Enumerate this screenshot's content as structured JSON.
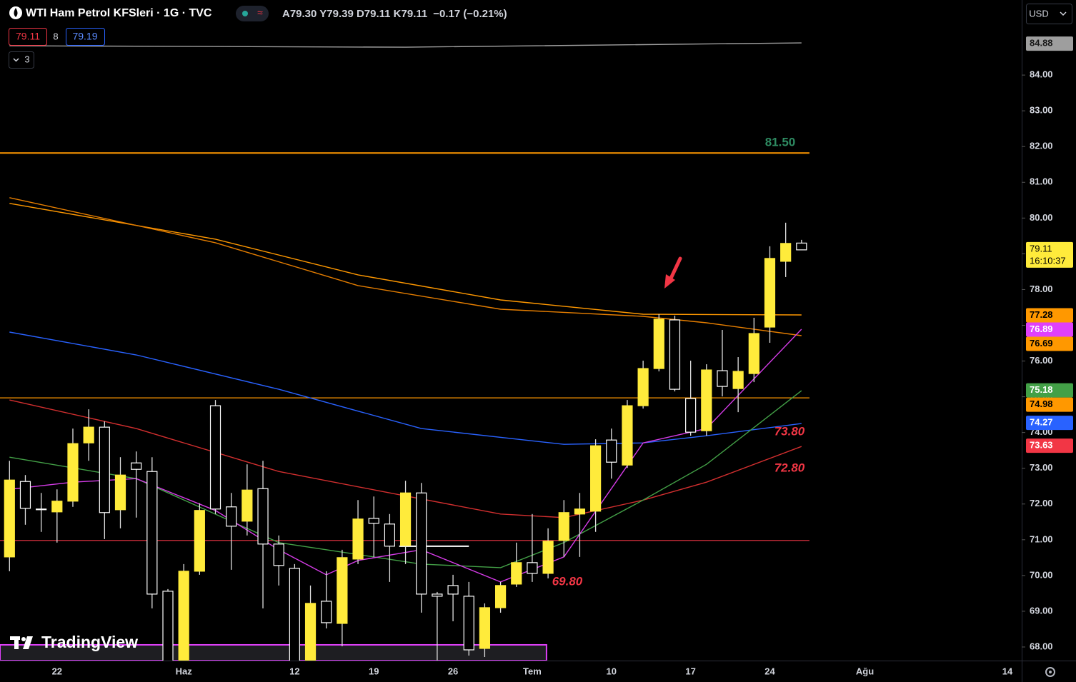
{
  "header": {
    "title": "WTI Ham Petrol KFSleri · 1G · TVC",
    "ohlc": "A79.30 Y79.39 D79.11 K79.11",
    "change": "−0.17 (−0.21%)",
    "bid": "79.11",
    "spread": "8",
    "ask": "79.19",
    "indicators": "3",
    "currency": "USD",
    "logo": "TradingView"
  },
  "chart_data": {
    "type": "candlestick",
    "open": [
      70.52,
      72.63,
      71.86,
      71.78,
      72.08,
      73.71,
      74.15,
      71.84,
      73.15,
      72.91,
      69.56,
      67.3,
      70.12,
      74.75,
      71.92,
      71.52,
      72.43,
      70.88,
      70.2,
      67.3,
      69.28,
      68.66,
      70.46,
      71.6,
      71.44,
      70.84,
      72.31,
      69.48,
      69.72,
      69.42,
      67.96,
      69.1,
      69.76,
      70.36,
      70.06,
      70.98,
      71.72,
      71.8,
      73.79,
      73.09,
      74.75,
      75.79,
      77.15,
      74.95,
      74.05,
      75.73,
      75.23,
      75.65,
      76.95,
      78.79,
      79.3
    ],
    "high": [
      73.21,
      72.81,
      72.31,
      72.41,
      74.11,
      74.65,
      74.31,
      73.31,
      73.47,
      73.31,
      69.62,
      70.32,
      72.02,
      74.91,
      72.31,
      73.11,
      73.21,
      71.12,
      70.32,
      69.72,
      70.12,
      70.72,
      72.11,
      72.21,
      71.72,
      72.65,
      72.59,
      69.54,
      70.02,
      69.82,
      69.22,
      69.82,
      70.92,
      71.72,
      71.32,
      72.11,
      72.31,
      73.81,
      74.11,
      74.91,
      76.01,
      77.31,
      77.27,
      76.01,
      75.91,
      76.87,
      76.11,
      77.21,
      79.21,
      79.87,
      79.39
    ],
    "low": [
      70.12,
      71.42,
      71.22,
      70.92,
      71.92,
      73.21,
      71.02,
      71.32,
      71.62,
      69.08,
      67.0,
      67.0,
      70.02,
      71.72,
      70.16,
      71.12,
      69.08,
      69.72,
      67.0,
      67.0,
      68.52,
      68.02,
      70.32,
      70.52,
      69.82,
      70.32,
      68.96,
      67.0,
      68.72,
      67.76,
      67.72,
      68.96,
      69.68,
      69.82,
      69.92,
      70.52,
      70.52,
      71.22,
      72.71,
      73.01,
      74.67,
      75.71,
      75.15,
      73.91,
      73.91,
      75.01,
      74.57,
      75.41,
      76.51,
      78.35,
      79.11
    ],
    "close": [
      72.67,
      71.88,
      71.84,
      72.08,
      73.69,
      74.15,
      71.76,
      72.81,
      72.97,
      69.48,
      67.3,
      70.12,
      71.82,
      71.86,
      71.38,
      72.39,
      70.88,
      70.28,
      67.3,
      69.22,
      68.68,
      70.5,
      71.58,
      71.46,
      70.82,
      72.31,
      69.48,
      69.42,
      69.48,
      67.92,
      69.1,
      69.72,
      70.36,
      70.06,
      70.96,
      71.76,
      71.86,
      73.63,
      73.17,
      74.75,
      75.79,
      77.17,
      75.21,
      74.01,
      75.75,
      75.29,
      75.71,
      76.77,
      78.87,
      79.29,
      79.11
    ],
    "up_color": "#ffeb3b",
    "down_color": "#000000",
    "down_border": "#ffffff",
    "wick_color": "#e0e0e0",
    "xlim": [
      -0.6,
      63.9
    ],
    "ylim": [
      67.62,
      86.1
    ],
    "xticks": [
      {
        "value": 3,
        "label": "22"
      },
      {
        "value": 11,
        "label": "Haz"
      },
      {
        "value": 18,
        "label": "12"
      },
      {
        "value": 23,
        "label": "19"
      },
      {
        "value": 28,
        "label": "26"
      },
      {
        "value": 33,
        "label": "Tem"
      },
      {
        "value": 38,
        "label": "10"
      },
      {
        "value": 43,
        "label": "17"
      },
      {
        "value": 48,
        "label": "24"
      },
      {
        "value": 54,
        "label": "Ağu"
      },
      {
        "value": 63,
        "label": "14"
      }
    ],
    "yticks": [
      {
        "value": 68,
        "label": "68.00"
      },
      {
        "value": 69,
        "label": "69.00"
      },
      {
        "value": 70,
        "label": "70.00"
      },
      {
        "value": 71,
        "label": "71.00"
      },
      {
        "value": 72,
        "label": "72.00"
      },
      {
        "value": 73,
        "label": "73.00"
      },
      {
        "value": 74,
        "label": "74.00"
      },
      {
        "value": 75,
        "label": "75.00"
      },
      {
        "value": 76,
        "label": "76.00"
      },
      {
        "value": 77,
        "label": "77.00"
      },
      {
        "value": 78,
        "label": "78.00"
      },
      {
        "value": 79,
        "label": "79.00"
      },
      {
        "value": 80,
        "label": "80.00"
      },
      {
        "value": 81,
        "label": "81.00"
      },
      {
        "value": 82,
        "label": "82.00"
      },
      {
        "value": 83,
        "label": "83.00"
      },
      {
        "value": 84,
        "label": "84.00"
      }
    ],
    "lines": [
      {
        "color": "#9e9e9e",
        "x": [
          0,
          25,
          50
        ],
        "values": [
          84.82,
          84.78,
          84.9
        ]
      },
      {
        "color": "#ff9800",
        "x": [
          0,
          13,
          22,
          31,
          40,
          50
        ],
        "values": [
          80.41,
          79.41,
          78.41,
          77.71,
          77.31,
          77.29
        ]
      },
      {
        "color": "#e67e00",
        "x": [
          0,
          13,
          22,
          31,
          40,
          44,
          50
        ],
        "values": [
          80.57,
          79.31,
          78.11,
          77.45,
          77.25,
          77.07,
          76.71
        ]
      },
      {
        "color": "#2962ff",
        "x": [
          0,
          8,
          17,
          26,
          35,
          40,
          44,
          50
        ],
        "values": [
          76.81,
          76.17,
          75.21,
          74.11,
          73.67,
          73.71,
          73.91,
          74.25
        ]
      },
      {
        "color": "#d32f2f",
        "x": [
          0,
          8,
          17,
          24,
          31,
          35,
          40,
          44,
          50
        ],
        "values": [
          74.91,
          74.11,
          72.91,
          72.31,
          71.72,
          71.62,
          72.11,
          72.61,
          73.61
        ]
      },
      {
        "color": "#43a047",
        "x": [
          0,
          8,
          17,
          26,
          31,
          35,
          40,
          44,
          50
        ],
        "values": [
          73.31,
          72.71,
          70.92,
          70.32,
          70.22,
          70.92,
          72.11,
          73.11,
          75.17
        ]
      },
      {
        "color": "#d63ce8",
        "x": [
          0,
          4,
          8,
          13,
          17,
          20,
          22,
          26,
          31,
          35,
          40,
          44,
          50
        ],
        "values": [
          72.41,
          72.61,
          72.71,
          71.82,
          70.72,
          70.02,
          70.42,
          70.72,
          69.82,
          70.52,
          73.71,
          74.11,
          76.89
        ]
      }
    ],
    "levels": [
      {
        "value": 81.82,
        "color": "#ff9800"
      },
      {
        "value": 74.97,
        "color": "#ff9800"
      },
      {
        "value": 70.98,
        "color": "#f23645"
      }
    ],
    "segments": [
      {
        "x": [
          24.6,
          29
        ],
        "value": 70.82,
        "color": "#ffffff"
      }
    ],
    "zones": [
      {
        "x": [
          -0.6,
          33.9
        ],
        "value": 68.06,
        "color": "#e040fb"
      }
    ],
    "annotations": [
      {
        "text": "81.50",
        "color": "#2e8b62"
      },
      {
        "text": "73.80",
        "color": "#f23645"
      },
      {
        "text": "72.80",
        "color": "#f23645"
      },
      {
        "text": "69.80",
        "color": "#f23645"
      }
    ],
    "price_labels": [
      {
        "value": 84.88,
        "color": "#9e9e9e"
      },
      {
        "value": 79.11,
        "sub": "16:10:37",
        "color": "#ffeb3b"
      },
      {
        "value": 77.28,
        "color": "#ff9800"
      },
      {
        "value": 76.89,
        "color": "#e040fb"
      },
      {
        "value": 76.69,
        "color": "#ff9800"
      },
      {
        "value": 75.18,
        "color": "#43a047"
      },
      {
        "value": 74.98,
        "color": "#ff9800"
      },
      {
        "value": 74.27,
        "color": "#2962ff"
      },
      {
        "value": 73.63,
        "color": "#f23645"
      }
    ]
  }
}
